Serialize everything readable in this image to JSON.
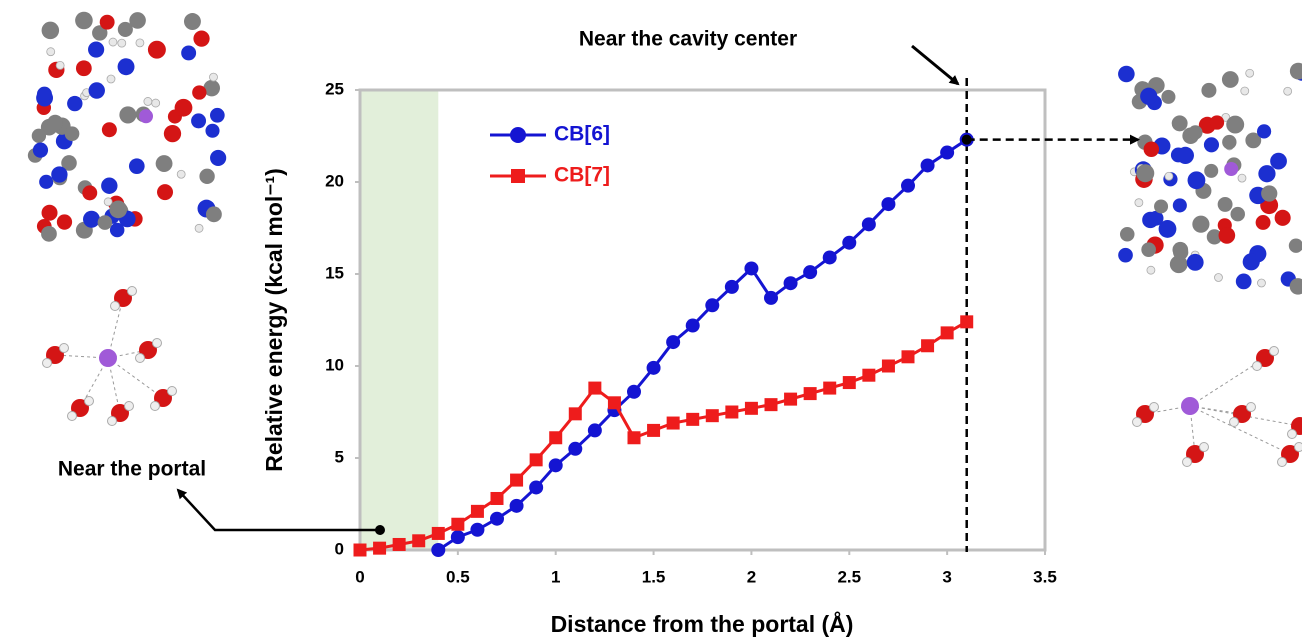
{
  "chart_data": {
    "type": "line",
    "x_label": "Distance from the portal (Å)",
    "y_label": "Relative energy (kcal mol⁻¹)",
    "xlim": [
      0,
      3.5
    ],
    "xticks": [
      0,
      0.5,
      1,
      1.5,
      2,
      2.5,
      3,
      3.5
    ],
    "ylim": [
      0,
      25
    ],
    "yticks": [
      0,
      5,
      10,
      15,
      20,
      25
    ],
    "grid": false,
    "legend_position": "top-left",
    "highlight_xrange": [
      0,
      0.4
    ],
    "highlight_color": "#e2efda",
    "cavity_line_x": 3.1,
    "annotations": [
      "Near the cavity center",
      "Near the portal"
    ],
    "series": [
      {
        "name": "CB[6]",
        "color": "#1414d2",
        "marker": "circle",
        "x": [
          0.4,
          0.5,
          0.6,
          0.7,
          0.8,
          0.9,
          1.0,
          1.1,
          1.2,
          1.3,
          1.4,
          1.5,
          1.6,
          1.7,
          1.8,
          1.9,
          2.0,
          2.1,
          2.2,
          2.3,
          2.4,
          2.5,
          2.6,
          2.7,
          2.8,
          2.9,
          3.0,
          3.1
        ],
        "values": [
          0,
          0.7,
          1.1,
          1.7,
          2.4,
          3.4,
          4.6,
          5.5,
          6.5,
          7.6,
          8.6,
          9.9,
          11.3,
          12.2,
          13.3,
          14.3,
          15.3,
          13.7,
          14.5,
          15.1,
          15.9,
          16.7,
          17.7,
          18.8,
          19.8,
          20.9,
          21.6,
          22.3
        ]
      },
      {
        "name": "CB[7]",
        "color": "#ee1c1c",
        "marker": "square",
        "x": [
          0,
          0.1,
          0.2,
          0.3,
          0.4,
          0.5,
          0.6,
          0.7,
          0.8,
          0.9,
          1.0,
          1.1,
          1.2,
          1.3,
          1.4,
          1.5,
          1.6,
          1.7,
          1.8,
          1.9,
          2.0,
          2.1,
          2.2,
          2.3,
          2.4,
          2.5,
          2.6,
          2.7,
          2.8,
          2.9,
          3.0,
          3.1
        ],
        "values": [
          0,
          0.1,
          0.3,
          0.5,
          0.9,
          1.4,
          2.1,
          2.8,
          3.8,
          4.9,
          6.1,
          7.4,
          8.8,
          8.0,
          6.1,
          6.5,
          6.9,
          7.1,
          7.3,
          7.5,
          7.7,
          7.9,
          8.2,
          8.5,
          8.8,
          9.1,
          9.5,
          10.0,
          10.5,
          11.1,
          11.8,
          12.4
        ]
      }
    ]
  }
}
